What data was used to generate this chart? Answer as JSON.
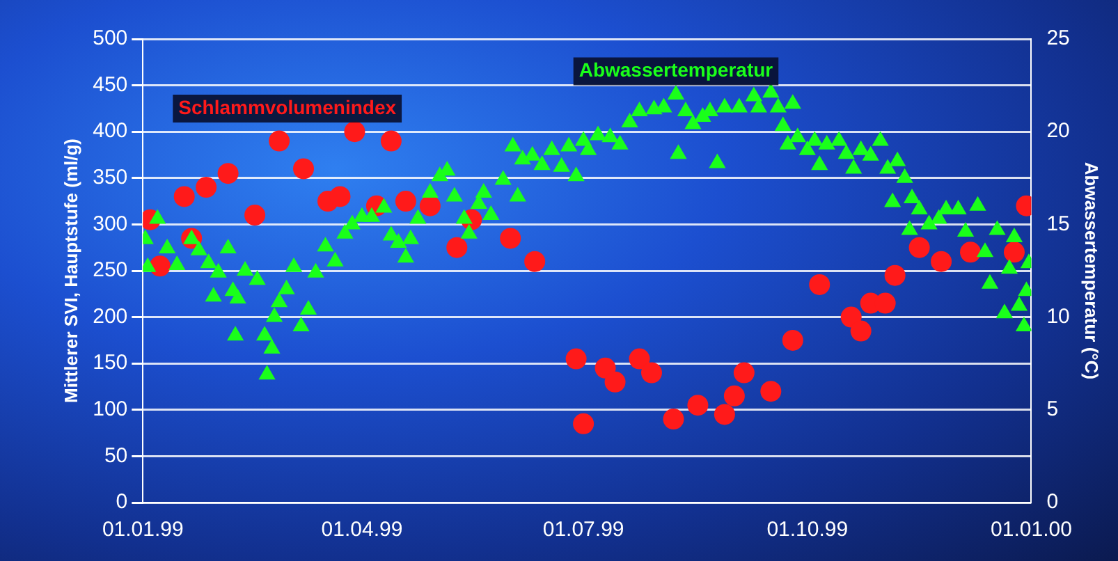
{
  "chart_data": {
    "type": "scatter",
    "ylabel": "Mittlerer SVI, Hauptstufe (ml/g)",
    "y2label": "Abwassertemperatur (°C)",
    "xlim": [
      "1999-01-01",
      "2000-01-01"
    ],
    "xticks": [
      {
        "value": "1999-01-01",
        "label": "01.01.99"
      },
      {
        "value": "1999-04-01",
        "label": "01.04.99"
      },
      {
        "value": "1999-07-01",
        "label": "01.07.99"
      },
      {
        "value": "1999-10-01",
        "label": "01.10.99"
      },
      {
        "value": "2000-01-01",
        "label": "01.01.00"
      }
    ],
    "ylim": [
      0,
      500
    ],
    "yticks": [
      0,
      50,
      100,
      150,
      200,
      250,
      300,
      350,
      400,
      450,
      500
    ],
    "y2lim": [
      0,
      25
    ],
    "y2ticks": [
      0,
      5,
      10,
      15,
      20,
      25
    ],
    "grid": "y",
    "legend": false,
    "series": [
      {
        "name": "Schlammvolumenindex",
        "color": "#ff1a1a",
        "marker": "circle",
        "x": [
          "1999-01-04",
          "1999-01-08",
          "1999-01-18",
          "1999-01-21",
          "1999-01-27",
          "1999-02-05",
          "1999-02-16",
          "1999-02-26",
          "1999-03-08",
          "1999-03-18",
          "1999-03-23",
          "1999-03-29",
          "1999-04-07",
          "1999-04-13",
          "1999-04-19",
          "1999-04-29",
          "1999-05-10",
          "1999-05-16",
          "1999-06-01",
          "1999-06-11",
          "1999-06-28",
          "1999-07-01",
          "1999-07-10",
          "1999-07-14",
          "1999-07-24",
          "1999-07-29",
          "1999-08-07",
          "1999-08-17",
          "1999-08-28",
          "1999-09-01",
          "1999-09-05",
          "1999-09-16",
          "1999-09-25",
          "1999-10-06",
          "1999-10-19",
          "1999-10-23",
          "1999-10-27",
          "1999-11-02",
          "1999-11-06",
          "1999-11-16",
          "1999-11-25",
          "1999-12-07",
          "1999-12-25",
          "1999-12-30"
        ],
        "values": [
          305,
          255,
          330,
          285,
          340,
          355,
          310,
          390,
          360,
          325,
          330,
          400,
          320,
          390,
          325,
          320,
          275,
          305,
          285,
          260,
          155,
          85,
          145,
          130,
          155,
          140,
          90,
          105,
          95,
          115,
          140,
          120,
          175,
          235,
          200,
          185,
          215,
          215,
          245,
          275,
          260,
          270,
          270,
          320
        ]
      },
      {
        "name": "Abwassertemperatur",
        "color": "#1aff1a",
        "marker": "triangle",
        "axis": "y2",
        "x": [
          "1999-01-02",
          "1999-01-03",
          "1999-01-07",
          "1999-01-11",
          "1999-01-15",
          "1999-01-21",
          "1999-01-24",
          "1999-01-28",
          "1999-01-30",
          "1999-02-01",
          "1999-02-05",
          "1999-02-07",
          "1999-02-08",
          "1999-02-09",
          "1999-02-12",
          "1999-02-17",
          "1999-02-20",
          "1999-02-21",
          "1999-02-23",
          "1999-02-24",
          "1999-02-26",
          "1999-03-01",
          "1999-03-04",
          "1999-03-07",
          "1999-03-10",
          "1999-03-13",
          "1999-03-17",
          "1999-03-21",
          "1999-03-25",
          "1999-03-28",
          "1999-04-01",
          "1999-04-05",
          "1999-04-10",
          "1999-04-13",
          "1999-04-16",
          "1999-04-19",
          "1999-04-21",
          "1999-04-24",
          "1999-04-29",
          "1999-05-03",
          "1999-05-06",
          "1999-05-09",
          "1999-05-13",
          "1999-05-15",
          "1999-05-19",
          "1999-05-21",
          "1999-05-24",
          "1999-05-29",
          "1999-06-02",
          "1999-06-04",
          "1999-06-06",
          "1999-06-10",
          "1999-06-14",
          "1999-06-18",
          "1999-06-22",
          "1999-06-25",
          "1999-06-28",
          "1999-07-01",
          "1999-07-03",
          "1999-07-07",
          "1999-07-12",
          "1999-07-16",
          "1999-07-20",
          "1999-07-24",
          "1999-07-30",
          "1999-08-03",
          "1999-08-08",
          "1999-08-09",
          "1999-08-12",
          "1999-08-15",
          "1999-08-19",
          "1999-08-22",
          "1999-08-25",
          "1999-08-28",
          "1999-09-03",
          "1999-09-09",
          "1999-09-11",
          "1999-09-16",
          "1999-09-19",
          "1999-09-21",
          "1999-09-23",
          "1999-09-25",
          "1999-09-27",
          "1999-10-01",
          "1999-10-04",
          "1999-10-06",
          "1999-10-09",
          "1999-10-14",
          "1999-10-17",
          "1999-10-20",
          "1999-10-23",
          "1999-10-27",
          "1999-10-31",
          "1999-11-03",
          "1999-11-05",
          "1999-11-07",
          "1999-11-10",
          "1999-11-12",
          "1999-11-13",
          "1999-11-16",
          "1999-11-20",
          "1999-11-24",
          "1999-11-27",
          "1999-12-02",
          "1999-12-05",
          "1999-12-10",
          "1999-12-13",
          "1999-12-15",
          "1999-12-18",
          "1999-12-21",
          "1999-12-23",
          "1999-12-25",
          "1999-12-27",
          "1999-12-29",
          "1999-12-30",
          "1999-12-31"
        ],
        "values": [
          14.2,
          12.7,
          15.3,
          13.7,
          12.8,
          14.2,
          13.6,
          12.9,
          11.1,
          12.4,
          13.7,
          11.4,
          9.0,
          11.0,
          12.5,
          12.0,
          9.0,
          6.9,
          8.3,
          10.0,
          10.8,
          11.5,
          12.7,
          9.5,
          10.4,
          12.4,
          13.8,
          13.0,
          14.5,
          15.0,
          15.4,
          15.4,
          15.9,
          14.4,
          14.0,
          13.2,
          14.2,
          15.3,
          16.7,
          17.6,
          17.9,
          16.5,
          15.3,
          14.5,
          16.1,
          16.7,
          15.5,
          17.4,
          19.2,
          16.5,
          18.5,
          18.7,
          18.2,
          19.0,
          18.1,
          19.2,
          17.6,
          19.5,
          19.0,
          19.8,
          19.7,
          19.3,
          20.5,
          21.1,
          21.2,
          21.3,
          22.0,
          18.8,
          21.1,
          20.4,
          20.8,
          21.1,
          18.3,
          21.3,
          21.3,
          21.9,
          21.3,
          22.1,
          21.3,
          20.3,
          19.3,
          21.5,
          19.7,
          19.0,
          19.5,
          18.2,
          19.3,
          19.5,
          18.8,
          18.0,
          19.0,
          18.7,
          19.5,
          18.0,
          16.2,
          18.4,
          17.5,
          14.7,
          16.4,
          15.8,
          15.0,
          15.3,
          15.8,
          15.8,
          14.6,
          16.0,
          13.5,
          11.8,
          14.7,
          10.2,
          12.6,
          14.3,
          10.6,
          9.5,
          11.4,
          12.9
        ]
      }
    ]
  }
}
